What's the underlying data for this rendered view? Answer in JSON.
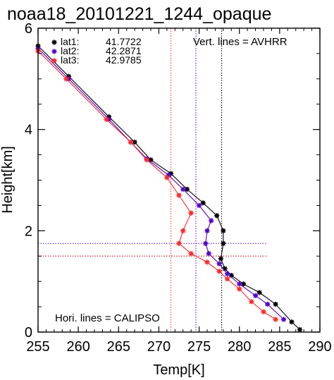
{
  "chart_data": {
    "type": "line",
    "title": "noaa18_20101221_1244_opaque",
    "xlabel": "Temp[K]",
    "ylabel": "Height[km]",
    "xlim": [
      255,
      290
    ],
    "ylim": [
      0,
      6
    ],
    "x_ticks": [
      "255",
      "260",
      "265",
      "270",
      "275",
      "280",
      "285",
      "290"
    ],
    "y_ticks": [
      "0",
      "2",
      "4",
      "6"
    ],
    "grid": false,
    "legend_position": "top-left",
    "series": [
      {
        "name": "lat1",
        "label_value": "41.7722",
        "color": "#000000",
        "marker": "asterisk",
        "points": [
          [
            255.0,
            5.65
          ],
          [
            258.8,
            5.05
          ],
          [
            263.8,
            4.25
          ],
          [
            267.0,
            3.75
          ],
          [
            269.0,
            3.4
          ],
          [
            271.5,
            3.13
          ],
          [
            273.5,
            2.82
          ],
          [
            275.5,
            2.55
          ],
          [
            277.2,
            2.3
          ],
          [
            278.0,
            2.0
          ],
          [
            278.0,
            1.75
          ],
          [
            277.7,
            1.45
          ],
          [
            278.2,
            1.25
          ],
          [
            279.0,
            1.12
          ],
          [
            280.5,
            0.95
          ],
          [
            282.5,
            0.78
          ],
          [
            284.5,
            0.55
          ],
          [
            286.5,
            0.2
          ],
          [
            287.5,
            0.05
          ]
        ]
      },
      {
        "name": "lat2",
        "label_value": "42.2871",
        "color": "#5500cc",
        "marker": "asterisk",
        "points": [
          [
            255.0,
            5.6
          ],
          [
            258.8,
            5.0
          ],
          [
            263.8,
            4.2
          ],
          [
            266.5,
            3.75
          ],
          [
            268.5,
            3.42
          ],
          [
            271.2,
            3.1
          ],
          [
            273.0,
            2.82
          ],
          [
            275.0,
            2.5
          ],
          [
            276.5,
            2.2
          ],
          [
            276.0,
            2.0
          ],
          [
            275.8,
            1.75
          ],
          [
            276.2,
            1.55
          ],
          [
            277.5,
            1.35
          ],
          [
            278.5,
            1.15
          ],
          [
            280.0,
            0.95
          ],
          [
            282.0,
            0.72
          ],
          [
            283.5,
            0.55
          ],
          [
            285.5,
            0.25
          ]
        ]
      },
      {
        "name": "lat3",
        "label_value": "42.9785",
        "color": "#ff2a2a",
        "marker": "asterisk",
        "points": [
          [
            255.0,
            5.55
          ],
          [
            258.5,
            5.0
          ],
          [
            263.5,
            4.2
          ],
          [
            266.5,
            3.75
          ],
          [
            268.5,
            3.4
          ],
          [
            271.0,
            3.05
          ],
          [
            272.5,
            2.7
          ],
          [
            274.0,
            2.35
          ],
          [
            273.0,
            2.0
          ],
          [
            272.5,
            1.75
          ],
          [
            274.0,
            1.55
          ],
          [
            276.0,
            1.38
          ],
          [
            277.5,
            1.2
          ],
          [
            278.5,
            1.05
          ],
          [
            280.0,
            0.85
          ],
          [
            281.5,
            0.6
          ],
          [
            283.0,
            0.4
          ],
          [
            284.5,
            0.25
          ]
        ]
      }
    ],
    "avhrr_lines": [
      {
        "series": "lat1",
        "x": 277.8,
        "color": "#000000"
      },
      {
        "series": "lat2",
        "x": 274.6,
        "color": "#5500cc"
      },
      {
        "series": "lat3",
        "x": 271.5,
        "color": "#ff2a2a"
      }
    ],
    "calipso_lines": [
      {
        "series": "lat1",
        "y": 1.5,
        "color": "#000000"
      },
      {
        "series": "lat2",
        "y": 1.75,
        "color": "#5500cc"
      },
      {
        "series": "lat3",
        "y": 1.5,
        "color": "#ff2a2a"
      }
    ],
    "annotations": {
      "vertical": "Vert. lines = AVHRR",
      "horizontal": "Hori. lines = CALIPSO"
    }
  }
}
